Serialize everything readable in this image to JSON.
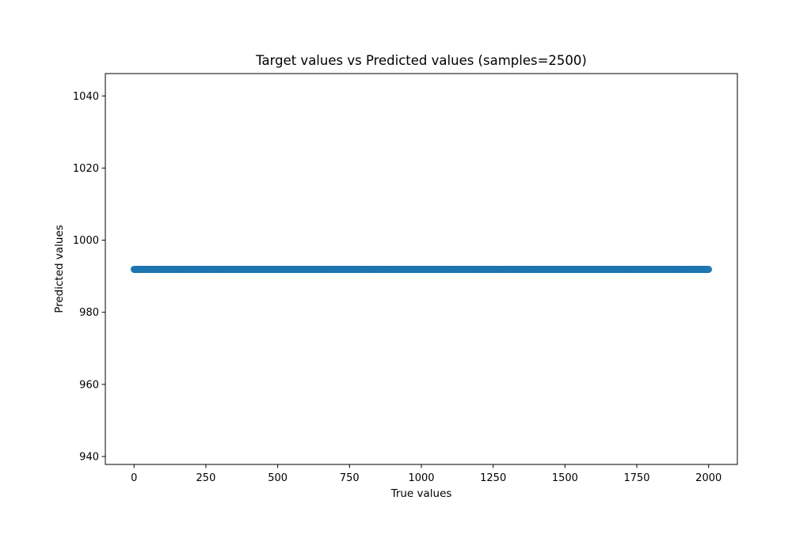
{
  "chart_data": {
    "type": "scatter",
    "title": "Target values vs Predicted values (samples=2500)",
    "xlabel": "True values",
    "ylabel": "Predicted values",
    "xlim": [
      -100,
      2100
    ],
    "ylim": [
      937.8,
      1046.2
    ],
    "xticks": [
      0,
      250,
      500,
      750,
      1000,
      1250,
      1500,
      1750,
      2000
    ],
    "yticks": [
      940,
      960,
      980,
      1000,
      1020,
      1040
    ],
    "grid": false,
    "legend": "none",
    "series": [
      {
        "x_range": [
          0,
          2000
        ],
        "y": 991.9,
        "count": 2500,
        "color": "#1f77b4",
        "alpha": 0.5,
        "marker": "circle"
      }
    ]
  }
}
